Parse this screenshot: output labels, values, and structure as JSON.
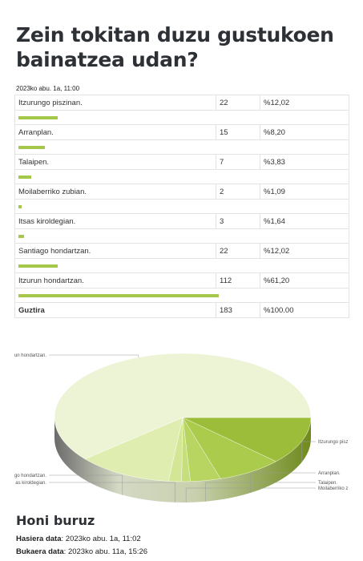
{
  "title": "Zein tokitan duzu gustukoen bainatzea udan?",
  "timestamp": "2023ko abu. 1a, 11:00",
  "chart_data": {
    "type": "pie",
    "categories": [
      "Itzurungo piszinan.",
      "Arranplan.",
      "Talaipen.",
      "Moilaberriko zubian.",
      "Itsas kiroldegian.",
      "Santiago hondartzan.",
      "Itzurun hondartzan."
    ],
    "values": [
      22,
      15,
      7,
      2,
      3,
      22,
      112
    ],
    "percents": [
      "%12,02",
      "%8,20",
      "%3,83",
      "%1,09",
      "%1,64",
      "%12,02",
      "%61,20"
    ],
    "total_label": "Guztira",
    "total_value": 183,
    "total_percent": "%100.00",
    "colors": [
      "#9cbd3a",
      "#aacb4c",
      "#b8d561",
      "#c6de7b",
      "#d3e695",
      "#dfedb1",
      "#edf4d5"
    ],
    "bar_color": "#a5c84a",
    "slice_labels": [
      "Itzurungo pisz",
      "Arranplan.",
      "Talaipen.",
      "Moilaberriko z",
      "as kiroldegian.",
      "go hondartzan.",
      "un hondartzan."
    ]
  },
  "about": {
    "title": "Honi buruz",
    "start_label": "Hasiera data",
    "start_value": ": 2023ko abu. 1a, 11:02",
    "end_label": "Bukaera data",
    "end_value": ": 2023ko abu. 11a, 15:26"
  }
}
